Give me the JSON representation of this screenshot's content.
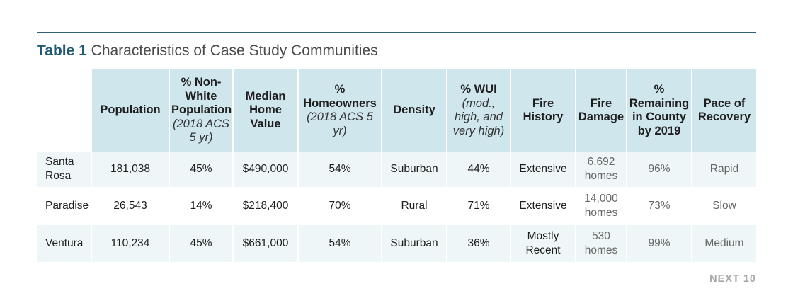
{
  "title": {
    "label": "Table 1",
    "text": "Characteristics of Case Study Communities"
  },
  "columns": [
    {
      "main": "Population",
      "sub": ""
    },
    {
      "main": "% Non-White Population",
      "sub": "(2018 ACS 5 yr)"
    },
    {
      "main": "Median Home Value",
      "sub": ""
    },
    {
      "main": "% Homeowners",
      "sub": "(2018 ACS 5 yr)"
    },
    {
      "main": "Density",
      "sub": ""
    },
    {
      "main": "% WUI",
      "sub": "(mod., high, and very high)"
    },
    {
      "main": "Fire History",
      "sub": ""
    },
    {
      "main": "Fire Damage",
      "sub": ""
    },
    {
      "main": "% Remaining in County by 2019",
      "sub": ""
    },
    {
      "main": "Pace of Recovery",
      "sub": ""
    }
  ],
  "rows": [
    {
      "community": "Santa Rosa",
      "cells": [
        "181,038",
        "45%",
        "$490,000",
        "54%",
        "Suburban",
        "44%",
        "Extensive",
        "6,692 homes",
        "96%",
        "Rapid"
      ]
    },
    {
      "community": "Paradise",
      "cells": [
        "26,543",
        "14%",
        "$218,400",
        "70%",
        "Rural",
        "71%",
        "Extensive",
        "14,000 homes",
        "73%",
        "Slow"
      ]
    },
    {
      "community": "Ventura",
      "cells": [
        "110,234",
        "45%",
        "$661,000",
        "54%",
        "Suburban",
        "36%",
        "Mostly Recent",
        "530 homes",
        "99%",
        "Medium"
      ]
    }
  ],
  "footer": {
    "brand": "NEXT 10"
  },
  "colors": {
    "header_bg": "#cfe6ec",
    "stripe_bg": "#eef6f8",
    "title_accent": "#1f5a73",
    "rule": "#2f5f78"
  }
}
